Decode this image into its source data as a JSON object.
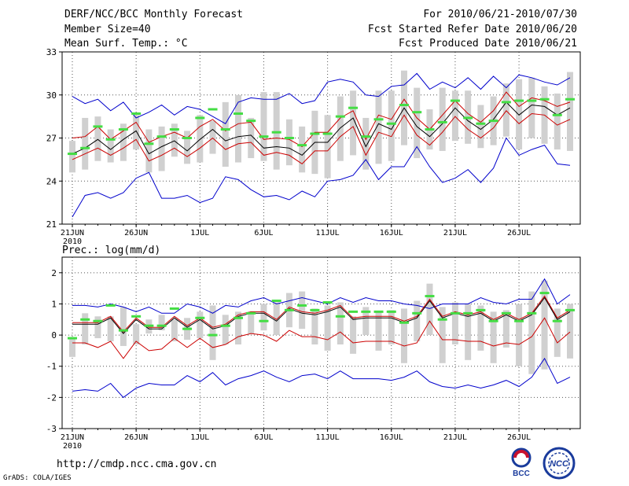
{
  "header": {
    "title": "DERF/NCC/BCC Monthly Forecast",
    "member_size": "Member Size=40",
    "variable1": "Mean Surf. Temp.: °C",
    "forecast_period": "For 2010/06/21-2010/07/30",
    "start_date": "Fcst Started Refer Date 2010/06/20",
    "produced_date": "Fcst Produced Date 2010/06/21"
  },
  "footer": {
    "url": "http://cmdp.ncc.cma.gov.cn",
    "credit": "GrADS: COLA/IGES",
    "logo_left_text": "BCC",
    "logo_right_text": "NCC"
  },
  "chart_data": [
    {
      "type": "ensemble-boxplot",
      "title": "Mean Surf. Temp.: °C",
      "ylabel": "°C",
      "ylim": [
        21,
        33
      ],
      "yticks": [
        21,
        24,
        27,
        30,
        33
      ],
      "xtick_labels": [
        "21JUN",
        "26JUN",
        "1JUL",
        "6JUL",
        "11JUL",
        "16JUL",
        "21JUL",
        "26JUL"
      ],
      "xtick_days": [
        1,
        6,
        11,
        16,
        21,
        26,
        31,
        36
      ],
      "year_label": "2010",
      "grid": true,
      "days": 40,
      "series": [
        {
          "name": "max",
          "color": "#0000cc",
          "values": [
            29.9,
            29.4,
            29.7,
            28.9,
            29.5,
            28.4,
            28.8,
            29.3,
            28.6,
            29.2,
            29.0,
            28.5,
            28.0,
            29.5,
            29.8,
            29.7,
            29.7,
            30.1,
            29.4,
            29.6,
            30.9,
            31.1,
            30.9,
            30.0,
            29.9,
            30.6,
            30.7,
            31.5,
            30.4,
            30.9,
            30.5,
            31.2,
            30.4,
            31.3,
            30.5,
            31.4,
            31.2,
            30.9,
            30.7,
            31.2
          ]
        },
        {
          "name": "upper",
          "color": "#cc0000",
          "values": [
            27.0,
            27.1,
            27.8,
            26.9,
            27.5,
            28.1,
            26.7,
            27.1,
            27.4,
            27.0,
            27.8,
            28.3,
            27.5,
            28.0,
            28.1,
            26.9,
            27.0,
            26.9,
            26.4,
            27.4,
            27.4,
            28.4,
            28.9,
            26.9,
            28.6,
            28.3,
            29.7,
            28.4,
            27.6,
            28.6,
            29.6,
            28.7,
            28.1,
            28.9,
            30.2,
            29.2,
            29.8,
            29.6,
            29.2,
            29.5
          ]
        },
        {
          "name": "mean",
          "color": "#000000",
          "values": [
            25.9,
            26.3,
            26.9,
            26.2,
            26.9,
            27.5,
            25.9,
            26.4,
            26.8,
            26.1,
            26.9,
            27.6,
            26.8,
            27.1,
            27.2,
            26.3,
            26.4,
            26.3,
            25.8,
            26.7,
            26.7,
            27.7,
            28.4,
            26.4,
            28.0,
            27.6,
            29.1,
            27.8,
            27.1,
            28.0,
            29.1,
            28.2,
            27.6,
            28.3,
            29.5,
            28.6,
            29.3,
            29.2,
            28.6,
            29.1
          ]
        },
        {
          "name": "lower",
          "color": "#cc0000",
          "values": [
            25.5,
            25.9,
            26.3,
            25.8,
            26.3,
            26.9,
            25.4,
            25.8,
            26.3,
            25.7,
            26.3,
            27.0,
            26.2,
            26.6,
            26.7,
            25.8,
            26.0,
            25.8,
            25.2,
            26.1,
            26.1,
            27.1,
            27.8,
            25.8,
            27.4,
            27.1,
            28.6,
            27.2,
            26.5,
            27.4,
            28.5,
            27.6,
            27.0,
            27.7,
            28.9,
            28.0,
            28.7,
            28.6,
            27.9,
            28.3
          ]
        },
        {
          "name": "min",
          "color": "#0000cc",
          "values": [
            21.5,
            23.0,
            23.2,
            22.8,
            23.2,
            24.2,
            24.6,
            22.8,
            22.8,
            23.0,
            22.5,
            22.8,
            24.3,
            24.1,
            23.4,
            22.9,
            23.0,
            22.7,
            23.3,
            22.9,
            24.0,
            24.1,
            24.4,
            25.5,
            24.1,
            25.0,
            25.0,
            26.4,
            25.0,
            23.9,
            24.2,
            24.8,
            23.9,
            24.9,
            27.0,
            25.8,
            26.2,
            26.5,
            25.2,
            25.1
          ]
        },
        {
          "name": "box_low",
          "color": "#d0d0d0",
          "values": [
            24.6,
            24.8,
            25.4,
            25.3,
            25.4,
            26.2,
            24.6,
            24.7,
            25.7,
            25.2,
            25.3,
            25.9,
            25.0,
            25.3,
            25.6,
            25.4,
            24.8,
            25.1,
            24.6,
            24.5,
            24.2,
            25.4,
            25.8,
            24.8,
            25.2,
            25.4,
            26.5,
            25.6,
            26.2,
            26.1,
            26.8,
            26.6,
            26.3,
            26.5,
            27.1,
            26.2,
            27.0,
            26.6,
            26.2,
            26.1
          ]
        },
        {
          "name": "box_high",
          "color": "#d0d0d0",
          "values": [
            26.8,
            28.4,
            28.5,
            27.6,
            28.0,
            28.6,
            27.6,
            27.8,
            28.0,
            27.5,
            28.6,
            28.2,
            29.5,
            30.0,
            28.4,
            30.2,
            30.2,
            28.3,
            27.8,
            28.9,
            28.6,
            29.9,
            30.3,
            28.4,
            30.3,
            30.3,
            31.7,
            30.5,
            29.0,
            30.5,
            30.3,
            30.3,
            29.3,
            29.9,
            30.8,
            31.1,
            31.2,
            30.6,
            30.1,
            31.6
          ]
        },
        {
          "name": "median",
          "color": "#44dd44",
          "values": [
            25.9,
            26.3,
            27.8,
            26.9,
            27.6,
            28.7,
            26.6,
            27.1,
            27.6,
            27.0,
            28.4,
            29.0,
            27.6,
            28.7,
            28.2,
            27.1,
            27.4,
            27.0,
            26.5,
            27.3,
            27.3,
            28.5,
            29.1,
            27.1,
            28.3,
            28.0,
            29.3,
            28.8,
            27.6,
            28.1,
            29.6,
            28.4,
            28.0,
            28.2,
            29.5,
            29.6,
            29.6,
            29.7,
            28.6,
            29.7
          ]
        }
      ]
    },
    {
      "type": "ensemble-boxplot",
      "title": "Prec.: log(mm/d)",
      "ylabel": "log(mm/d)",
      "ylim": [
        -3,
        2.5
      ],
      "yticks": [
        -3,
        -2,
        -1,
        0,
        1,
        2
      ],
      "xtick_labels": [
        "21JUN",
        "26JUN",
        "1JUL",
        "6JUL",
        "11JUL",
        "16JUL",
        "21JUL",
        "26JUL"
      ],
      "xtick_days": [
        1,
        6,
        11,
        16,
        21,
        26,
        31,
        36
      ],
      "year_label": "2010",
      "grid": true,
      "days": 40,
      "series": [
        {
          "name": "max",
          "color": "#0000cc",
          "values": [
            0.95,
            0.95,
            0.9,
            1.0,
            0.9,
            0.75,
            0.9,
            0.7,
            0.7,
            1.0,
            0.9,
            0.7,
            0.95,
            0.9,
            1.1,
            1.2,
            1.0,
            1.1,
            1.2,
            1.1,
            1.0,
            1.2,
            1.05,
            1.2,
            1.1,
            1.1,
            1.0,
            0.95,
            0.85,
            1.0,
            1.0,
            1.0,
            1.2,
            1.05,
            1.0,
            1.15,
            1.15,
            1.8,
            1.0,
            1.3
          ]
        },
        {
          "name": "upper",
          "color": "#000000",
          "values": [
            0.35,
            0.35,
            0.35,
            0.55,
            0.05,
            0.5,
            0.2,
            0.2,
            0.55,
            0.25,
            0.5,
            0.2,
            0.3,
            0.6,
            0.7,
            0.7,
            0.45,
            0.85,
            0.7,
            0.65,
            0.75,
            0.9,
            0.5,
            0.55,
            0.55,
            0.55,
            0.4,
            0.55,
            1.1,
            0.55,
            0.7,
            0.6,
            0.7,
            0.45,
            0.65,
            0.45,
            0.65,
            1.2,
            0.5,
            0.75
          ]
        },
        {
          "name": "mean",
          "color": "#cc0000",
          "values": [
            0.4,
            0.4,
            0.4,
            0.6,
            0.1,
            0.55,
            0.25,
            0.25,
            0.6,
            0.3,
            0.55,
            0.25,
            0.35,
            0.65,
            0.75,
            0.75,
            0.5,
            0.9,
            0.75,
            0.7,
            0.8,
            0.95,
            0.55,
            0.6,
            0.6,
            0.6,
            0.45,
            0.6,
            1.15,
            0.6,
            0.75,
            0.65,
            0.75,
            0.5,
            0.7,
            0.5,
            0.7,
            1.25,
            0.55,
            0.8
          ]
        },
        {
          "name": "lower",
          "color": "#cc0000",
          "values": [
            -0.25,
            -0.25,
            -0.4,
            -0.2,
            -0.75,
            -0.2,
            -0.5,
            -0.45,
            -0.1,
            -0.4,
            -0.1,
            -0.4,
            -0.3,
            -0.05,
            0.05,
            0.0,
            -0.2,
            0.15,
            -0.05,
            -0.05,
            -0.15,
            0.1,
            -0.25,
            -0.2,
            -0.2,
            -0.2,
            -0.35,
            -0.25,
            0.45,
            -0.15,
            -0.15,
            -0.2,
            -0.2,
            -0.35,
            -0.25,
            -0.3,
            -0.05,
            0.55,
            -0.25,
            0.1
          ]
        },
        {
          "name": "min",
          "color": "#0000cc",
          "values": [
            -1.8,
            -1.75,
            -1.8,
            -1.55,
            -2.0,
            -1.7,
            -1.55,
            -1.6,
            -1.6,
            -1.3,
            -1.5,
            -1.2,
            -1.6,
            -1.4,
            -1.3,
            -1.15,
            -1.35,
            -1.5,
            -1.3,
            -1.25,
            -1.4,
            -1.15,
            -1.4,
            -1.4,
            -1.4,
            -1.45,
            -1.35,
            -1.15,
            -1.5,
            -1.65,
            -1.7,
            -1.6,
            -1.7,
            -1.6,
            -1.45,
            -1.65,
            -1.35,
            -0.75,
            -1.55,
            -1.35
          ]
        },
        {
          "name": "box_low",
          "color": "#d0d0d0",
          "values": [
            -0.7,
            -0.3,
            -0.1,
            -0.2,
            -0.35,
            -0.3,
            0.05,
            0.15,
            -0.2,
            -0.15,
            -0.1,
            -0.8,
            -0.3,
            -0.3,
            0.05,
            0.15,
            0.0,
            0.25,
            0.2,
            -0.3,
            -0.5,
            -0.3,
            -0.6,
            0.0,
            -0.5,
            -0.3,
            -0.9,
            -0.2,
            0.0,
            -0.9,
            -0.3,
            -0.8,
            -0.5,
            -0.9,
            -0.4,
            -1.0,
            -1.25,
            -1.1,
            -0.7,
            -0.75
          ]
        },
        {
          "name": "box_high",
          "color": "#d0d0d0",
          "values": [
            -0.1,
            0.7,
            0.6,
            0.6,
            0.9,
            0.35,
            0.5,
            0.65,
            0.5,
            0.55,
            0.75,
            0.95,
            0.65,
            0.75,
            0.75,
            1.0,
            1.05,
            1.35,
            1.4,
            0.85,
            0.95,
            1.05,
            0.6,
            0.9,
            0.75,
            0.8,
            0.85,
            1.1,
            1.65,
            0.9,
            1.05,
            1.0,
            0.95,
            0.75,
            0.8,
            1.0,
            1.4,
            1.75,
            0.85,
            1.0
          ]
        },
        {
          "name": "median",
          "color": "#44dd44",
          "values": [
            -0.1,
            0.5,
            0.45,
            0.95,
            0.15,
            0.6,
            0.3,
            0.3,
            0.85,
            0.2,
            0.55,
            0.0,
            0.3,
            0.55,
            0.7,
            0.45,
            1.1,
            0.8,
            0.95,
            0.8,
            1.05,
            0.6,
            0.75,
            0.75,
            0.75,
            0.75,
            0.4,
            0.7,
            1.25,
            0.5,
            0.7,
            0.7,
            0.8,
            0.45,
            0.7,
            0.45,
            0.7,
            1.35,
            0.45,
            0.8
          ]
        }
      ]
    }
  ]
}
